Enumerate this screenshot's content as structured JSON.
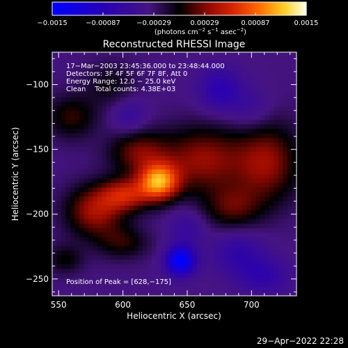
{
  "chart_data": {
    "type": "heatmap",
    "title": "Reconstructed RHESSI Image",
    "xlabel": "Heliocentric X (arcsec)",
    "ylabel": "Heliocentric Y (arcsec)",
    "xlim": [
      545,
      735
    ],
    "ylim": [
      -263,
      -75
    ],
    "x_ticks": [
      550,
      600,
      650,
      700
    ],
    "x_tick_labels": [
      "550",
      "600",
      "650",
      "700"
    ],
    "y_ticks": [
      -100,
      -150,
      -200,
      -250
    ],
    "y_tick_labels": [
      "−100",
      "−150",
      "−200",
      "−250"
    ],
    "colorbar": {
      "range": [
        -0.0015,
        0.0015
      ],
      "tick_labels": [
        "−0.0015",
        "−0.00087",
        "−0.00029",
        "0.00029",
        "0.00087",
        "0.0015"
      ],
      "unit_label_parts": [
        "(photons cm",
        "−2",
        " s",
        "−1",
        " asec",
        "−2",
        ")"
      ]
    },
    "annotations": [
      "17−Mar−2003 23:45:36.000 to 23:48:44.000",
      "Detectors: 3F 4F 5F 6F 7F 8F, Att 0",
      "Energy Range: 12.0 − 25.0 keV",
      "Clean    Total counts: 4.38E+03"
    ],
    "peak_label": "Position of Peak = [628,−175]",
    "peak": {
      "x": 628,
      "y": -175,
      "value": 0.0015
    },
    "sources": [
      {
        "x": 628,
        "y": -175,
        "amp": 0.00135,
        "sx": 11,
        "sy": 10
      },
      {
        "x": 602,
        "y": -185,
        "amp": 0.0008,
        "sx": 14,
        "sy": 9
      },
      {
        "x": 578,
        "y": -198,
        "amp": 0.00075,
        "sx": 16,
        "sy": 14
      },
      {
        "x": 612,
        "y": -152,
        "amp": 0.0006,
        "sx": 16,
        "sy": 12
      },
      {
        "x": 662,
        "y": -158,
        "amp": 0.0007,
        "sx": 22,
        "sy": 18
      },
      {
        "x": 712,
        "y": -160,
        "amp": 0.0007,
        "sx": 18,
        "sy": 22
      },
      {
        "x": 685,
        "y": -195,
        "amp": 0.0005,
        "sx": 16,
        "sy": 12
      },
      {
        "x": 560,
        "y": -125,
        "amp": 0.00045,
        "sx": 14,
        "sy": 12
      },
      {
        "x": 590,
        "y": -100,
        "amp": 0.0003,
        "sx": 14,
        "sy": 12
      },
      {
        "x": 600,
        "y": -222,
        "amp": 0.0004,
        "sx": 14,
        "sy": 9
      },
      {
        "x": 555,
        "y": -235,
        "amp": 0.00035,
        "sx": 10,
        "sy": 8
      },
      {
        "x": 645,
        "y": -236,
        "amp": -0.0012,
        "sx": 8,
        "sy": 8
      },
      {
        "x": 676,
        "y": -104,
        "amp": -0.0005,
        "sx": 12,
        "sy": 12
      },
      {
        "x": 605,
        "y": -125,
        "amp": -0.0003,
        "sx": 10,
        "sy": 10
      },
      {
        "x": 710,
        "y": -248,
        "amp": -0.0004,
        "sx": 14,
        "sy": 10
      },
      {
        "x": 690,
        "y": -230,
        "amp": -0.0004,
        "sx": 14,
        "sy": 12
      },
      {
        "x": 650,
        "y": -210,
        "amp": -0.0003,
        "sx": 10,
        "sy": 10
      },
      {
        "x": 700,
        "y": -120,
        "amp": -0.00025,
        "sx": 12,
        "sy": 12
      }
    ],
    "base_level": -0.00035
  },
  "footer": {
    "timestamp": "29−Apr−2022 22:28"
  }
}
